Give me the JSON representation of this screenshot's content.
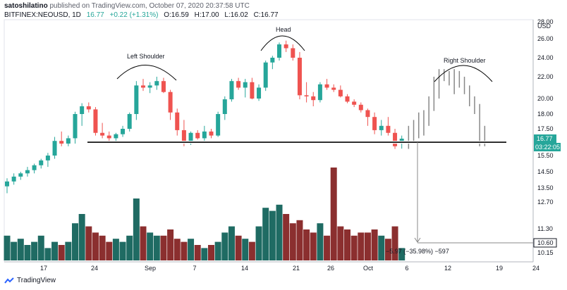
{
  "header": {
    "author": "satoshilatino",
    "published": "published on TradingView.com, October 07, 2020 20:37:58 UTC",
    "symbol": "BITFINEX:NEOUSD, 1D",
    "last": "16.77",
    "change": "+0.22 (+1.31%)",
    "open": "O:16.59",
    "high": "H:17.00",
    "low": "L:16.02",
    "close": "C:16.77"
  },
  "footer": {
    "brand": "TradingView"
  },
  "colors": {
    "up": "#26a69a",
    "down": "#ef5350",
    "up_vol": "#1f6b63",
    "down_vol": "#8b2f2f",
    "projection": "#888888"
  },
  "chart_data": {
    "type": "candlestick",
    "currency": "USD",
    "y_ticks": [
      "28.00",
      "26.00",
      "24.00",
      "22.00",
      "20.00",
      "18.00",
      "17.50",
      "16.77",
      "15.50",
      "14.50",
      "13.50",
      "12.70",
      "11.30",
      "10.60",
      "10.15"
    ],
    "y_tick_values": [
      28.0,
      26.0,
      24.0,
      22.0,
      20.0,
      18.0,
      17.5,
      null,
      15.5,
      14.5,
      13.5,
      12.7,
      11.3,
      10.6,
      10.15
    ],
    "x_ticks": [
      "17",
      "24",
      "Sep",
      "7",
      "14",
      "21",
      "26",
      "Oct",
      "6",
      "12",
      "19",
      "24"
    ],
    "price_label": "16.77",
    "countdown_label": "03:22:05",
    "target_label": "10.60",
    "annotations": {
      "left_shoulder": "Left Shoulder",
      "head": "Head",
      "right_shoulder": "Right Shoulder",
      "measure": "−5.97 (−35.98%) −597"
    },
    "neckline": 16.5,
    "target": 10.6,
    "candles": [
      [
        13.6,
        14.1,
        13.2,
        13.9,
        0.4
      ],
      [
        13.9,
        14.4,
        13.7,
        14.2,
        0.3
      ],
      [
        14.2,
        14.5,
        14.0,
        14.4,
        0.35
      ],
      [
        14.4,
        14.8,
        14.2,
        14.6,
        0.25
      ],
      [
        14.6,
        15.0,
        14.4,
        14.9,
        0.3
      ],
      [
        14.9,
        15.3,
        14.7,
        15.2,
        0.4
      ],
      [
        15.2,
        15.7,
        14.8,
        15.5,
        0.2
      ],
      [
        15.5,
        16.9,
        15.3,
        16.6,
        0.3
      ],
      [
        16.6,
        17.3,
        16.2,
        16.4,
        0.25
      ],
      [
        16.4,
        17.0,
        16.2,
        16.8,
        0.3
      ],
      [
        16.8,
        18.3,
        16.4,
        18.0,
        0.6
      ],
      [
        18.0,
        19.4,
        17.6,
        19.0,
        0.75
      ],
      [
        19.0,
        19.5,
        18.2,
        18.6,
        0.55
      ],
      [
        18.6,
        18.9,
        17.0,
        17.2,
        0.45
      ],
      [
        17.2,
        17.7,
        16.8,
        17.0,
        0.4
      ],
      [
        17.0,
        17.3,
        16.6,
        16.8,
        0.3
      ],
      [
        16.8,
        17.2,
        16.5,
        17.1,
        0.35
      ],
      [
        17.1,
        17.6,
        16.9,
        17.5,
        0.3
      ],
      [
        17.5,
        18.2,
        17.3,
        18.0,
        0.4
      ],
      [
        18.0,
        21.6,
        17.8,
        21.2,
        1.0
      ],
      [
        21.2,
        21.8,
        20.7,
        21.0,
        0.55
      ],
      [
        21.0,
        21.5,
        20.5,
        21.2,
        0.45
      ],
      [
        21.2,
        22.0,
        20.8,
        21.6,
        0.4
      ],
      [
        21.6,
        21.9,
        20.5,
        20.6,
        0.4
      ],
      [
        20.6,
        20.8,
        17.8,
        18.2,
        0.5
      ],
      [
        18.2,
        18.7,
        17.0,
        17.4,
        0.35
      ],
      [
        17.4,
        17.8,
        16.2,
        16.6,
        0.3
      ],
      [
        16.6,
        17.3,
        16.3,
        17.2,
        0.35
      ],
      [
        17.2,
        17.4,
        16.7,
        16.8,
        0.25
      ],
      [
        16.8,
        17.6,
        16.6,
        17.3,
        0.2
      ],
      [
        17.3,
        17.5,
        16.8,
        17.0,
        0.25
      ],
      [
        17.0,
        18.3,
        16.9,
        18.0,
        0.3
      ],
      [
        18.0,
        20.2,
        17.8,
        19.9,
        0.45
      ],
      [
        19.9,
        21.8,
        19.6,
        21.6,
        0.55
      ],
      [
        21.6,
        21.9,
        20.8,
        21.0,
        0.4
      ],
      [
        21.0,
        21.8,
        20.1,
        21.5,
        0.35
      ],
      [
        21.5,
        21.9,
        19.9,
        20.0,
        0.3
      ],
      [
        20.0,
        21.3,
        19.7,
        21.0,
        0.55
      ],
      [
        21.0,
        23.7,
        20.7,
        23.5,
        0.85
      ],
      [
        23.5,
        24.2,
        22.8,
        24.0,
        0.8
      ],
      [
        24.0,
        25.6,
        23.7,
        25.4,
        0.9
      ],
      [
        25.4,
        25.8,
        24.6,
        25.0,
        0.75
      ],
      [
        25.0,
        25.4,
        23.7,
        24.0,
        0.6
      ],
      [
        24.0,
        24.6,
        19.9,
        20.3,
        0.65
      ],
      [
        20.3,
        21.5,
        19.5,
        20.2,
        0.5
      ],
      [
        20.2,
        20.6,
        19.0,
        19.8,
        0.45
      ],
      [
        19.8,
        21.5,
        19.5,
        21.3,
        0.6
      ],
      [
        21.3,
        21.8,
        20.8,
        21.0,
        0.4
      ],
      [
        21.0,
        21.3,
        20.6,
        20.8,
        1.5
      ],
      [
        20.8,
        21.2,
        20.1,
        20.2,
        0.55
      ],
      [
        20.2,
        20.4,
        19.4,
        19.6,
        0.5
      ],
      [
        19.6,
        19.9,
        18.9,
        19.2,
        0.4
      ],
      [
        19.2,
        19.5,
        18.2,
        18.5,
        0.45
      ],
      [
        18.5,
        18.7,
        17.6,
        17.9,
        0.45
      ],
      [
        17.9,
        18.2,
        17.1,
        17.4,
        0.5
      ],
      [
        17.4,
        17.8,
        17.0,
        17.6,
        0.4
      ],
      [
        17.6,
        17.9,
        17.0,
        17.2,
        0.35
      ],
      [
        17.2,
        17.5,
        16.0,
        16.2,
        0.55
      ],
      [
        16.59,
        17.0,
        16.02,
        16.77,
        0.2
      ]
    ],
    "projection": [
      [
        16.0,
        17.6
      ],
      [
        16.4,
        17.8
      ],
      [
        16.8,
        18.2
      ],
      [
        17.0,
        18.5
      ],
      [
        17.6,
        20.2
      ],
      [
        18.4,
        22.0
      ],
      [
        20.0,
        22.8
      ],
      [
        21.6,
        22.8
      ],
      [
        21.2,
        22.6
      ],
      [
        20.4,
        22.8
      ],
      [
        21.0,
        22.6
      ],
      [
        20.4,
        22.0
      ],
      [
        19.0,
        21.2
      ],
      [
        18.0,
        20.2
      ],
      [
        16.2,
        19.3
      ],
      [
        16.2,
        17.6
      ]
    ]
  }
}
